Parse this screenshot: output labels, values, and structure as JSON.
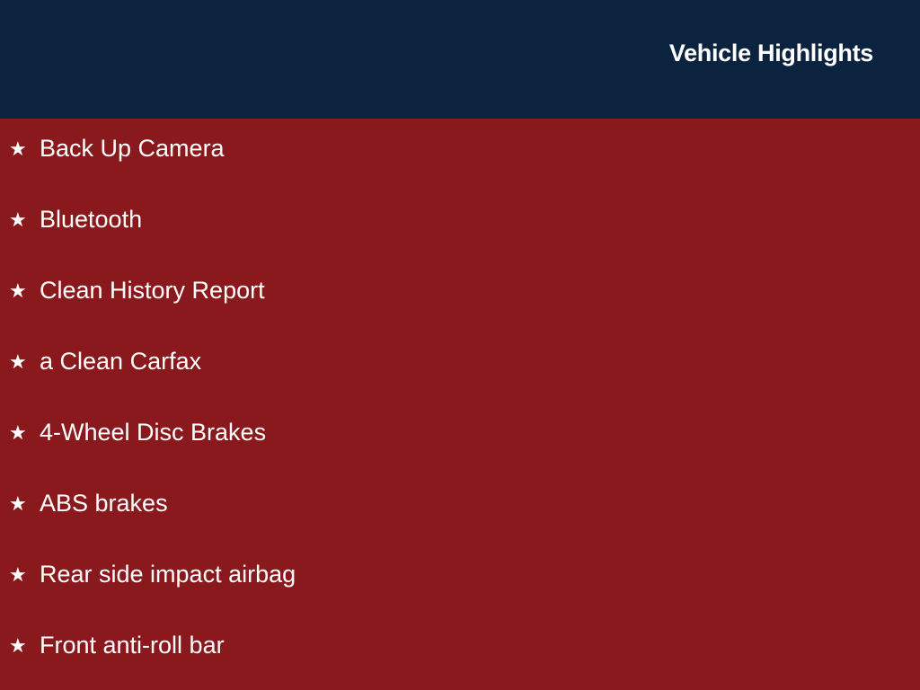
{
  "header": {
    "title": "Vehicle Highlights"
  },
  "highlights": [
    {
      "label": "Back Up Camera",
      "icon": "star-icon"
    },
    {
      "label": "Bluetooth",
      "icon": "star-icon"
    },
    {
      "label": "Clean History Report",
      "icon": "star-icon"
    },
    {
      "label": "a Clean Carfax",
      "icon": "star-icon"
    },
    {
      "label": "4-Wheel Disc Brakes",
      "icon": "star-icon"
    },
    {
      "label": "ABS brakes",
      "icon": "star-icon"
    },
    {
      "label": "Rear side impact airbag",
      "icon": "star-icon"
    },
    {
      "label": "Front anti-roll bar",
      "icon": "star-icon"
    }
  ],
  "colors": {
    "header_bg": "#0c2340",
    "body_bg": "#8a191d",
    "text": "#ffffff"
  }
}
